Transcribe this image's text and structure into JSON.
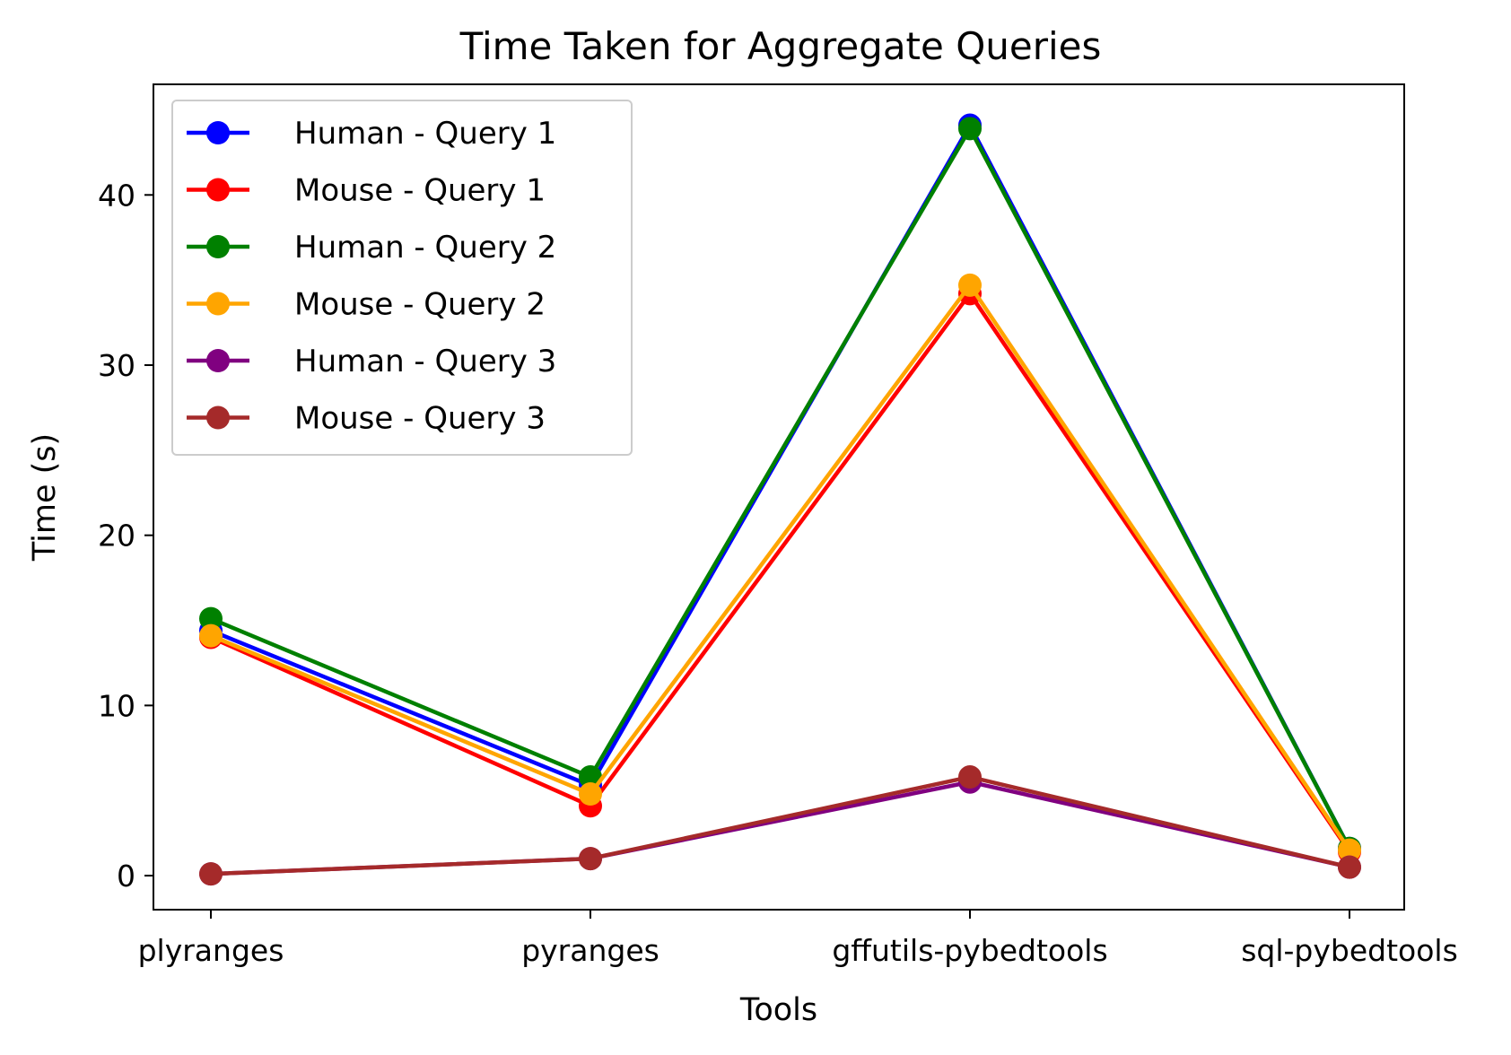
{
  "chart_data": {
    "type": "line",
    "title": "Time Taken for Aggregate Queries",
    "xlabel": "Tools",
    "ylabel": "Time (s)",
    "categories": [
      "plyranges",
      "pyranges",
      "gffutils-pybedtools",
      "sql-pybedtools"
    ],
    "ylim": [
      -2,
      46.5
    ],
    "yticks": [
      0,
      10,
      20,
      30,
      40
    ],
    "grid": false,
    "legend_position": "top-left",
    "series": [
      {
        "name": "Human - Query 1",
        "color": "#0000ff",
        "values": [
          14.4,
          5.3,
          44.1,
          1.6
        ]
      },
      {
        "name": "Mouse - Query 1",
        "color": "#ff0000",
        "values": [
          14.0,
          4.1,
          34.2,
          1.4
        ]
      },
      {
        "name": "Human - Query 2",
        "color": "#008000",
        "values": [
          15.1,
          5.8,
          43.9,
          1.6
        ]
      },
      {
        "name": "Mouse - Query 2",
        "color": "#ffa500",
        "values": [
          14.1,
          4.8,
          34.7,
          1.5
        ]
      },
      {
        "name": "Human - Query 3",
        "color": "#800080",
        "values": [
          0.1,
          1.0,
          5.5,
          0.5
        ]
      },
      {
        "name": "Mouse - Query 3",
        "color": "#a52a2a",
        "values": [
          0.1,
          1.0,
          5.8,
          0.5
        ]
      }
    ]
  }
}
